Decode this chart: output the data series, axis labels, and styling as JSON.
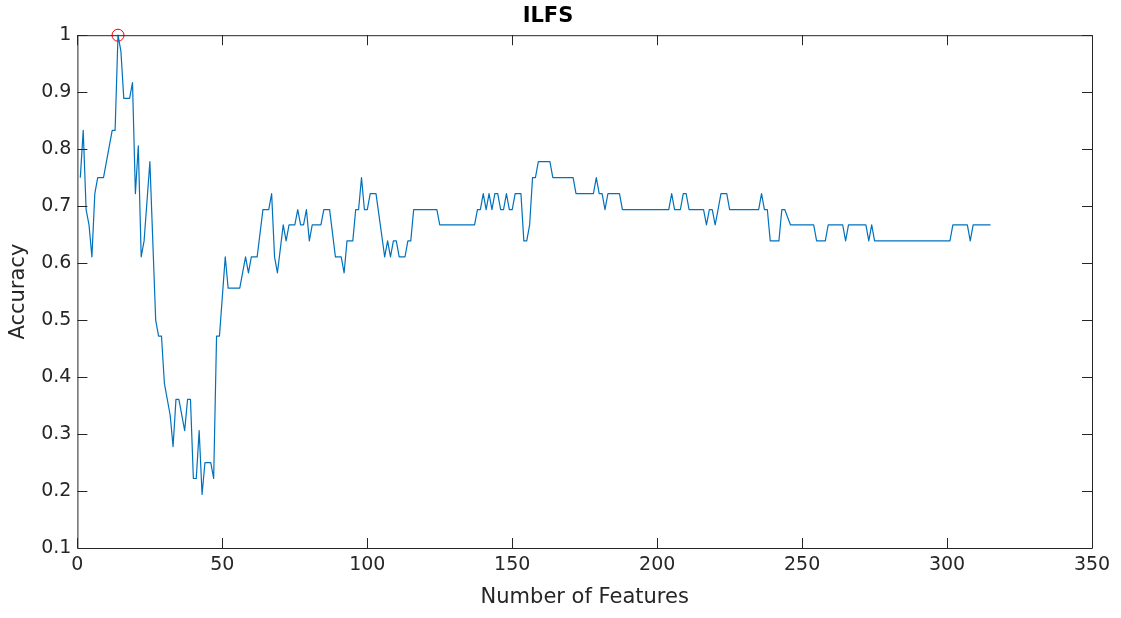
{
  "chart_data": {
    "type": "line",
    "title": "ILFS",
    "xlabel": "Number of Features",
    "ylabel": "Accuracy",
    "xlim": [
      0,
      350
    ],
    "xticks": [
      0,
      50,
      100,
      150,
      200,
      250,
      300,
      350
    ],
    "ylim": [
      0.1,
      1
    ],
    "yticks": [
      0.1,
      0.2,
      0.3,
      0.4,
      0.5,
      0.6,
      0.7,
      0.8,
      0.9,
      1
    ],
    "grid": false,
    "legend": false,
    "series": [
      {
        "type": "line",
        "color": "#0072bd",
        "marker": "none",
        "x": [
          1,
          2,
          3,
          4,
          5,
          6,
          7,
          9,
          12,
          13,
          14,
          15,
          16,
          18,
          19,
          20,
          21,
          22,
          23,
          25,
          27,
          28,
          29,
          30,
          32,
          33,
          34,
          35,
          37,
          38,
          39,
          40,
          41,
          42,
          43,
          44,
          46,
          47,
          48,
          49,
          51,
          52,
          56,
          58,
          59,
          60,
          62,
          64,
          66,
          67,
          68,
          69,
          71,
          72,
          73,
          75,
          76,
          77,
          78,
          79,
          80,
          81,
          84,
          85,
          87,
          89,
          91,
          92,
          93,
          95,
          96,
          97,
          98,
          99,
          100,
          101,
          103,
          106,
          107,
          108,
          109,
          110,
          111,
          113,
          114,
          115,
          116,
          124,
          125,
          137,
          138,
          139,
          140,
          141,
          142,
          143,
          144,
          145,
          146,
          147,
          148,
          149,
          150,
          151,
          153,
          154,
          155,
          156,
          157,
          158,
          159,
          163,
          164,
          171,
          172,
          178,
          179,
          180,
          181,
          182,
          183,
          187,
          188,
          204,
          205,
          206,
          208,
          209,
          210,
          211,
          216,
          217,
          218,
          219,
          220,
          221,
          222,
          224,
          225,
          235,
          236,
          237,
          238,
          239,
          242,
          243,
          244,
          246,
          254,
          255,
          258,
          259,
          264,
          265,
          266,
          272,
          273,
          274,
          275,
          301,
          302,
          307,
          308,
          309,
          315
        ],
        "values": [
          0.75,
          0.833,
          0.694,
          0.667,
          0.611,
          0.722,
          0.75,
          0.75,
          0.833,
          0.833,
          1,
          0.972,
          0.889,
          0.889,
          0.917,
          0.722,
          0.806,
          0.611,
          0.639,
          0.778,
          0.5,
          0.472,
          0.472,
          0.389,
          0.333,
          0.278,
          0.361,
          0.361,
          0.306,
          0.361,
          0.361,
          0.222,
          0.222,
          0.306,
          0.194,
          0.25,
          0.25,
          0.222,
          0.472,
          0.472,
          0.611,
          0.556,
          0.556,
          0.611,
          0.583,
          0.611,
          0.611,
          0.694,
          0.694,
          0.722,
          0.611,
          0.583,
          0.667,
          0.639,
          0.667,
          0.667,
          0.694,
          0.667,
          0.667,
          0.694,
          0.639,
          0.667,
          0.667,
          0.694,
          0.694,
          0.611,
          0.611,
          0.583,
          0.639,
          0.639,
          0.694,
          0.694,
          0.75,
          0.694,
          0.694,
          0.722,
          0.722,
          0.611,
          0.639,
          0.611,
          0.639,
          0.639,
          0.611,
          0.611,
          0.639,
          0.639,
          0.694,
          0.694,
          0.667,
          0.667,
          0.694,
          0.694,
          0.722,
          0.694,
          0.722,
          0.694,
          0.722,
          0.722,
          0.694,
          0.694,
          0.722,
          0.694,
          0.694,
          0.722,
          0.722,
          0.639,
          0.639,
          0.667,
          0.75,
          0.75,
          0.778,
          0.778,
          0.75,
          0.75,
          0.722,
          0.722,
          0.75,
          0.722,
          0.722,
          0.694,
          0.722,
          0.722,
          0.694,
          0.694,
          0.722,
          0.694,
          0.694,
          0.722,
          0.722,
          0.694,
          0.694,
          0.667,
          0.694,
          0.694,
          0.667,
          0.694,
          0.722,
          0.722,
          0.694,
          0.694,
          0.722,
          0.694,
          0.694,
          0.639,
          0.639,
          0.694,
          0.694,
          0.667,
          0.667,
          0.639,
          0.639,
          0.667,
          0.667,
          0.639,
          0.667,
          0.667,
          0.639,
          0.667,
          0.639,
          0.639,
          0.667,
          0.667,
          0.639,
          0.667,
          0.667
        ]
      },
      {
        "type": "scatter",
        "color": "#ff0000",
        "marker": "circle",
        "x": [
          14
        ],
        "values": [
          1
        ]
      }
    ]
  }
}
